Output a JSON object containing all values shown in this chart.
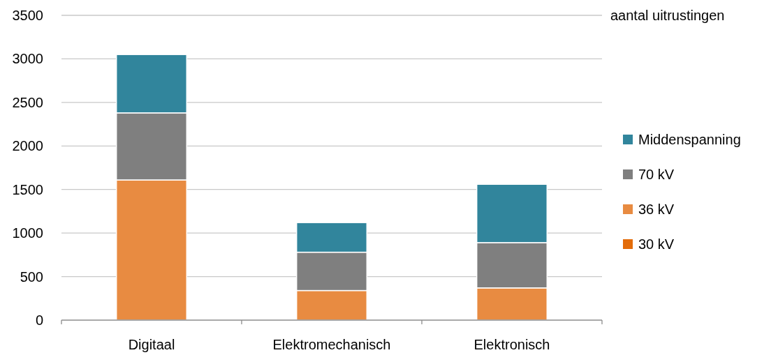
{
  "chart_data": {
    "type": "bar",
    "stacked": true,
    "ylabel": "aantal uitrustingen",
    "categories": [
      "Digitaal",
      "Elektromechanisch",
      "Elektronisch"
    ],
    "series": [
      {
        "name": "30 kV",
        "color": "#e36c0a",
        "values": [
          0,
          0,
          0
        ]
      },
      {
        "name": "36 kV",
        "color": "#e88b41",
        "values": [
          1610,
          340,
          370
        ]
      },
      {
        "name": "70 kV",
        "color": "#7f7f7f",
        "values": [
          770,
          440,
          520
        ]
      },
      {
        "name": "Middenspanning",
        "color": "#31859c",
        "values": [
          670,
          340,
          670
        ]
      }
    ],
    "ylim": [
      0,
      3500
    ],
    "yticks": [
      0,
      500,
      1000,
      1500,
      2000,
      2500,
      3000,
      3500
    ],
    "grid": "y",
    "legend": "right"
  }
}
